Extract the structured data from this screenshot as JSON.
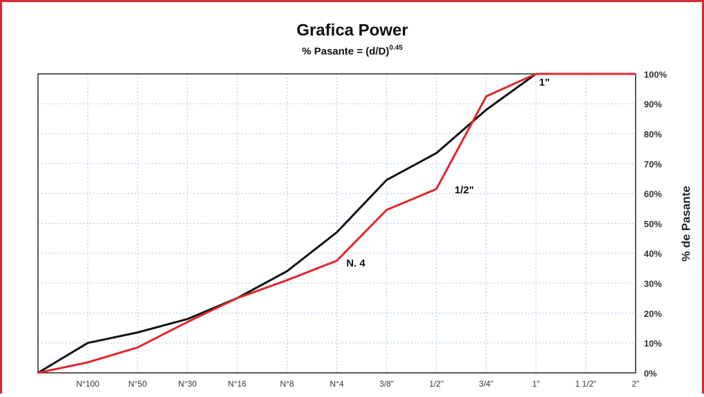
{
  "chart_data": {
    "type": "line",
    "title": "Grafica Power",
    "subtitle": "% Pasante = (d/D)",
    "subtitle_exponent": "0.45",
    "ylabel": "% de Pasante",
    "categories": [
      null,
      "N°100",
      "N°50",
      "N°30",
      "N°16",
      "N°8",
      "N°4",
      "3/8\"",
      "1/2\"",
      "3/4\"",
      "1\"",
      "1 1/2\"",
      "2\""
    ],
    "series": [
      {
        "color": "#111111",
        "values": [
          0,
          10,
          13.5,
          18,
          25,
          34,
          47,
          64.5,
          73.5,
          88,
          100,
          null,
          null
        ]
      },
      {
        "color": "#e0262b",
        "values": [
          0,
          3.5,
          8.5,
          17,
          25,
          31,
          37.5,
          54.5,
          61.5,
          92.5,
          100,
          100,
          100
        ]
      }
    ],
    "ylim": [
      0,
      100
    ],
    "yticks": [
      {
        "value": 0,
        "label": "0%"
      },
      {
        "value": 10,
        "label": "10%"
      },
      {
        "value": 20,
        "label": "20%"
      },
      {
        "value": 30,
        "label": "30%"
      },
      {
        "value": 40,
        "label": "40%"
      },
      {
        "value": 50,
        "label": "50%"
      },
      {
        "value": 60,
        "label": "60%"
      },
      {
        "value": 70,
        "label": "70%"
      },
      {
        "value": 80,
        "label": "80%"
      },
      {
        "value": 90,
        "label": "90%"
      },
      {
        "value": 100,
        "label": "100%"
      }
    ],
    "y_axis_side": "right",
    "grid": true,
    "annotations": [
      "1\"",
      "1/2\"",
      "N. 4"
    ]
  }
}
